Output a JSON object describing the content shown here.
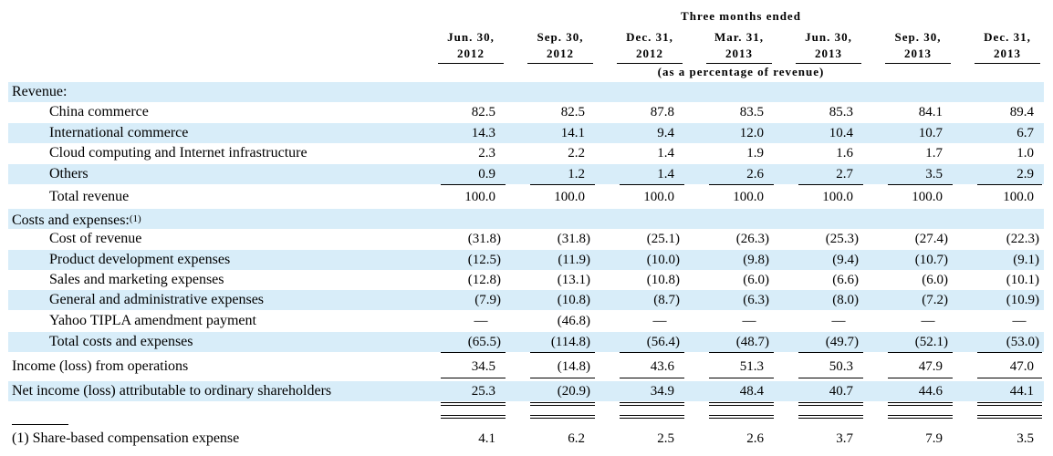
{
  "header": {
    "top": "Three months ended",
    "sub": "(as a percentage of revenue)",
    "columns": [
      {
        "l1": "Jun. 30,",
        "l2": "2012"
      },
      {
        "l1": "Sep. 30,",
        "l2": "2012"
      },
      {
        "l1": "Dec. 31,",
        "l2": "2012"
      },
      {
        "l1": "Mar. 31,",
        "l2": "2013"
      },
      {
        "l1": "Jun. 30,",
        "l2": "2013"
      },
      {
        "l1": "Sep. 30,",
        "l2": "2013"
      },
      {
        "l1": "Dec. 31,",
        "l2": "2013"
      }
    ]
  },
  "rows": {
    "revenue": {
      "label": "Revenue:"
    },
    "china": {
      "label": "China commerce",
      "values": [
        "82.5",
        "82.5",
        "87.8",
        "83.5",
        "85.3",
        "84.1",
        "89.4"
      ]
    },
    "intl": {
      "label": "International commerce",
      "values": [
        "14.3",
        "14.1",
        "9.4",
        "12.0",
        "10.4",
        "10.7",
        "6.7"
      ]
    },
    "cloud": {
      "label": "Cloud computing and Internet infrastructure",
      "values": [
        "2.3",
        "2.2",
        "1.4",
        "1.9",
        "1.6",
        "1.7",
        "1.0"
      ]
    },
    "others": {
      "label": "Others",
      "values": [
        "0.9",
        "1.2",
        "1.4",
        "2.6",
        "2.7",
        "3.5",
        "2.9"
      ]
    },
    "total_rev": {
      "label": "Total revenue",
      "values": [
        "100.0",
        "100.0",
        "100.0",
        "100.0",
        "100.0",
        "100.0",
        "100.0"
      ]
    },
    "costs": {
      "label": "Costs and expenses:",
      "footnote": "(1)"
    },
    "cor": {
      "label": "Cost of revenue",
      "values": [
        "(31.8)",
        "(31.8)",
        "(25.1)",
        "(26.3)",
        "(25.3)",
        "(27.4)",
        "(22.3)"
      ]
    },
    "pd": {
      "label": "Product development expenses",
      "values": [
        "(12.5)",
        "(11.9)",
        "(10.0)",
        "(9.8)",
        "(9.4)",
        "(10.7)",
        "(9.1)"
      ]
    },
    "sm": {
      "label": "Sales and marketing expenses",
      "values": [
        "(12.8)",
        "(13.1)",
        "(10.8)",
        "(6.0)",
        "(6.6)",
        "(6.0)",
        "(10.1)"
      ]
    },
    "ga": {
      "label": "General and administrative expenses",
      "values": [
        "(7.9)",
        "(10.8)",
        "(8.7)",
        "(6.3)",
        "(8.0)",
        "(7.2)",
        "(10.9)"
      ]
    },
    "yahoo": {
      "label": "Yahoo TIPLA amendment payment",
      "values": [
        "—",
        "(46.8)",
        "—",
        "—",
        "—",
        "—",
        "—"
      ]
    },
    "total_costs": {
      "label": "Total costs and expenses",
      "values": [
        "(65.5)",
        "(114.8)",
        "(56.4)",
        "(48.7)",
        "(49.7)",
        "(52.1)",
        "(53.0)"
      ]
    },
    "ops": {
      "label": "Income (loss) from operations",
      "values": [
        "34.5",
        "(14.8)",
        "43.6",
        "51.3",
        "50.3",
        "47.9",
        "47.0"
      ]
    },
    "net": {
      "label": "Net income (loss) attributable to ordinary shareholders",
      "values": [
        "25.3",
        "(20.9)",
        "34.9",
        "48.4",
        "40.7",
        "44.6",
        "44.1"
      ]
    },
    "sbc": {
      "label": "(1) Share-based compensation expense",
      "values": [
        "4.1",
        "6.2",
        "2.5",
        "2.6",
        "3.7",
        "7.9",
        "3.5"
      ]
    }
  }
}
